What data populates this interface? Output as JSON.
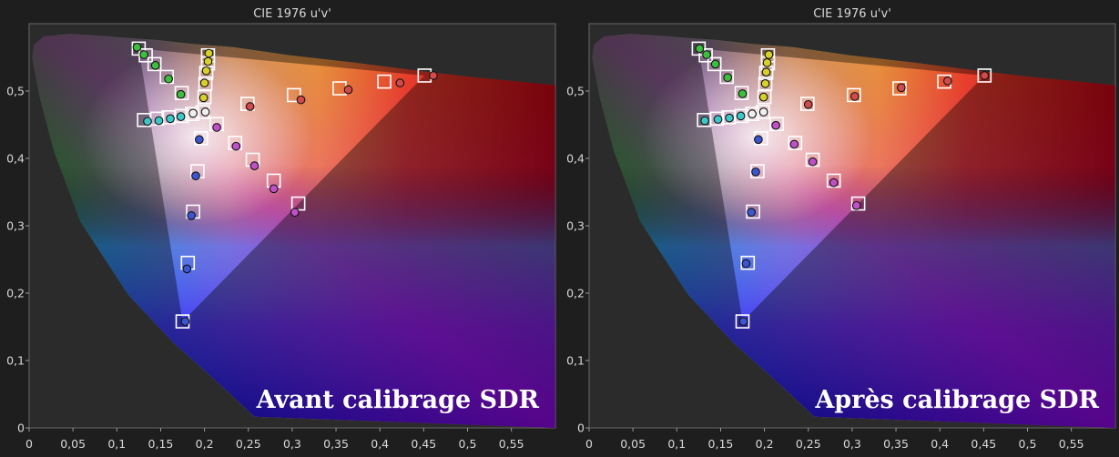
{
  "chart_data": [
    {
      "type": "scatter",
      "title": "CIE 1976 u'v'",
      "caption": "Avant calibrage SDR",
      "xlim": [
        0,
        0.6
      ],
      "ylim": [
        0,
        0.6
      ],
      "x_ticks": [
        "0",
        "0,05",
        "0,1",
        "0,15",
        "0,2",
        "0,25",
        "0,3",
        "0,35",
        "0,4",
        "0,45",
        "0,5",
        "0,55"
      ],
      "y_ticks": [
        "0",
        "0,1",
        "0,2",
        "0,3",
        "0,4",
        "0,5"
      ],
      "targets": [
        {
          "u": 0.451,
          "v": 0.523
        },
        {
          "u": 0.405,
          "v": 0.514
        },
        {
          "u": 0.354,
          "v": 0.504
        },
        {
          "u": 0.302,
          "v": 0.494
        },
        {
          "u": 0.249,
          "v": 0.481
        },
        {
          "u": 0.125,
          "v": 0.563
        },
        {
          "u": 0.133,
          "v": 0.553
        },
        {
          "u": 0.143,
          "v": 0.54
        },
        {
          "u": 0.157,
          "v": 0.521
        },
        {
          "u": 0.174,
          "v": 0.497
        },
        {
          "u": 0.175,
          "v": 0.158
        },
        {
          "u": 0.181,
          "v": 0.245
        },
        {
          "u": 0.187,
          "v": 0.321
        },
        {
          "u": 0.192,
          "v": 0.381
        },
        {
          "u": 0.196,
          "v": 0.43
        },
        {
          "u": 0.204,
          "v": 0.553
        },
        {
          "u": 0.204,
          "v": 0.541
        },
        {
          "u": 0.202,
          "v": 0.527
        },
        {
          "u": 0.201,
          "v": 0.511
        },
        {
          "u": 0.2,
          "v": 0.491
        },
        {
          "u": 0.131,
          "v": 0.457
        },
        {
          "u": 0.146,
          "v": 0.459
        },
        {
          "u": 0.159,
          "v": 0.461
        },
        {
          "u": 0.174,
          "v": 0.463
        },
        {
          "u": 0.186,
          "v": 0.466
        },
        {
          "u": 0.307,
          "v": 0.333
        },
        {
          "u": 0.279,
          "v": 0.367
        },
        {
          "u": 0.255,
          "v": 0.398
        },
        {
          "u": 0.235,
          "v": 0.423
        },
        {
          "u": 0.214,
          "v": 0.451
        },
        {
          "u": 0.198,
          "v": 0.469
        }
      ],
      "measured": [
        {
          "u": 0.461,
          "v": 0.523
        },
        {
          "u": 0.423,
          "v": 0.512
        },
        {
          "u": 0.364,
          "v": 0.502
        },
        {
          "u": 0.31,
          "v": 0.487
        },
        {
          "u": 0.252,
          "v": 0.477
        },
        {
          "u": 0.123,
          "v": 0.565
        },
        {
          "u": 0.131,
          "v": 0.554
        },
        {
          "u": 0.144,
          "v": 0.538
        },
        {
          "u": 0.159,
          "v": 0.518
        },
        {
          "u": 0.173,
          "v": 0.495
        },
        {
          "u": 0.178,
          "v": 0.158
        },
        {
          "u": 0.18,
          "v": 0.236
        },
        {
          "u": 0.185,
          "v": 0.315
        },
        {
          "u": 0.19,
          "v": 0.374
        },
        {
          "u": 0.194,
          "v": 0.428
        },
        {
          "u": 0.205,
          "v": 0.556
        },
        {
          "u": 0.204,
          "v": 0.544
        },
        {
          "u": 0.202,
          "v": 0.53
        },
        {
          "u": 0.2,
          "v": 0.512
        },
        {
          "u": 0.199,
          "v": 0.49
        },
        {
          "u": 0.135,
          "v": 0.455
        },
        {
          "u": 0.148,
          "v": 0.456
        },
        {
          "u": 0.161,
          "v": 0.459
        },
        {
          "u": 0.173,
          "v": 0.462
        },
        {
          "u": 0.187,
          "v": 0.467
        },
        {
          "u": 0.303,
          "v": 0.32
        },
        {
          "u": 0.279,
          "v": 0.355
        },
        {
          "u": 0.257,
          "v": 0.389
        },
        {
          "u": 0.236,
          "v": 0.418
        },
        {
          "u": 0.214,
          "v": 0.446
        },
        {
          "u": 0.201,
          "v": 0.469
        }
      ]
    },
    {
      "type": "scatter",
      "title": "CIE 1976 u'v'",
      "caption": "Après calibrage SDR",
      "xlim": [
        0,
        0.6
      ],
      "ylim": [
        0,
        0.6
      ],
      "x_ticks": [
        "0",
        "0,05",
        "0,1",
        "0,15",
        "0,2",
        "0,25",
        "0,3",
        "0,35",
        "0,4",
        "0,45",
        "0,5",
        "0,55"
      ],
      "y_ticks": [
        "0",
        "0,1",
        "0,2",
        "0,3",
        "0,4",
        "0,5"
      ],
      "targets": [
        {
          "u": 0.451,
          "v": 0.523
        },
        {
          "u": 0.405,
          "v": 0.514
        },
        {
          "u": 0.354,
          "v": 0.504
        },
        {
          "u": 0.302,
          "v": 0.494
        },
        {
          "u": 0.249,
          "v": 0.481
        },
        {
          "u": 0.125,
          "v": 0.563
        },
        {
          "u": 0.133,
          "v": 0.553
        },
        {
          "u": 0.143,
          "v": 0.54
        },
        {
          "u": 0.157,
          "v": 0.521
        },
        {
          "u": 0.174,
          "v": 0.497
        },
        {
          "u": 0.175,
          "v": 0.158
        },
        {
          "u": 0.181,
          "v": 0.245
        },
        {
          "u": 0.187,
          "v": 0.321
        },
        {
          "u": 0.192,
          "v": 0.381
        },
        {
          "u": 0.196,
          "v": 0.43
        },
        {
          "u": 0.204,
          "v": 0.553
        },
        {
          "u": 0.204,
          "v": 0.541
        },
        {
          "u": 0.202,
          "v": 0.527
        },
        {
          "u": 0.201,
          "v": 0.511
        },
        {
          "u": 0.2,
          "v": 0.491
        },
        {
          "u": 0.131,
          "v": 0.457
        },
        {
          "u": 0.146,
          "v": 0.459
        },
        {
          "u": 0.159,
          "v": 0.461
        },
        {
          "u": 0.174,
          "v": 0.463
        },
        {
          "u": 0.186,
          "v": 0.466
        },
        {
          "u": 0.307,
          "v": 0.333
        },
        {
          "u": 0.279,
          "v": 0.367
        },
        {
          "u": 0.255,
          "v": 0.398
        },
        {
          "u": 0.235,
          "v": 0.423
        },
        {
          "u": 0.214,
          "v": 0.451
        },
        {
          "u": 0.198,
          "v": 0.469
        }
      ],
      "measured": [
        {
          "u": 0.451,
          "v": 0.523
        },
        {
          "u": 0.409,
          "v": 0.515
        },
        {
          "u": 0.356,
          "v": 0.505
        },
        {
          "u": 0.303,
          "v": 0.492
        },
        {
          "u": 0.25,
          "v": 0.48
        },
        {
          "u": 0.126,
          "v": 0.563
        },
        {
          "u": 0.134,
          "v": 0.554
        },
        {
          "u": 0.144,
          "v": 0.54
        },
        {
          "u": 0.158,
          "v": 0.52
        },
        {
          "u": 0.175,
          "v": 0.496
        },
        {
          "u": 0.176,
          "v": 0.158
        },
        {
          "u": 0.179,
          "v": 0.244
        },
        {
          "u": 0.185,
          "v": 0.32
        },
        {
          "u": 0.19,
          "v": 0.38
        },
        {
          "u": 0.193,
          "v": 0.428
        },
        {
          "u": 0.205,
          "v": 0.554
        },
        {
          "u": 0.203,
          "v": 0.542
        },
        {
          "u": 0.202,
          "v": 0.528
        },
        {
          "u": 0.201,
          "v": 0.511
        },
        {
          "u": 0.199,
          "v": 0.491
        },
        {
          "u": 0.132,
          "v": 0.456
        },
        {
          "u": 0.147,
          "v": 0.458
        },
        {
          "u": 0.16,
          "v": 0.46
        },
        {
          "u": 0.173,
          "v": 0.463
        },
        {
          "u": 0.186,
          "v": 0.466
        },
        {
          "u": 0.305,
          "v": 0.33
        },
        {
          "u": 0.279,
          "v": 0.364
        },
        {
          "u": 0.255,
          "v": 0.395
        },
        {
          "u": 0.234,
          "v": 0.421
        },
        {
          "u": 0.213,
          "v": 0.449
        },
        {
          "u": 0.199,
          "v": 0.469
        }
      ]
    }
  ]
}
